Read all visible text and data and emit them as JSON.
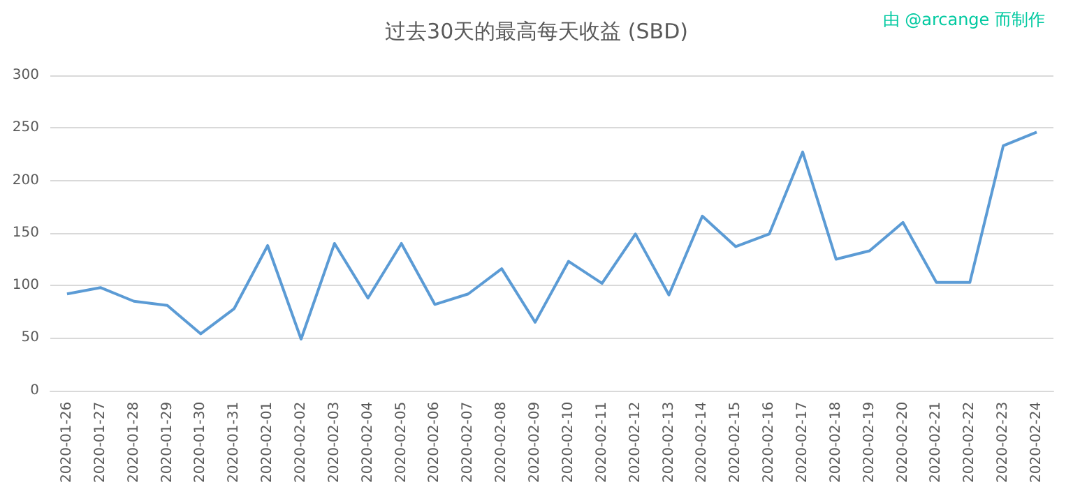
{
  "chart_data": {
    "type": "line",
    "title": "过去30天的最高每天收益 (SBD)",
    "annotations": [
      "由 @arcange 而制作"
    ],
    "categories": [
      "2020-01-26",
      "2020-01-27",
      "2020-01-28",
      "2020-01-29",
      "2020-01-30",
      "2020-01-31",
      "2020-02-01",
      "2020-02-02",
      "2020-02-03",
      "2020-02-04",
      "2020-02-05",
      "2020-02-06",
      "2020-02-07",
      "2020-02-08",
      "2020-02-09",
      "2020-02-10",
      "2020-02-11",
      "2020-02-12",
      "2020-02-13",
      "2020-02-14",
      "2020-02-15",
      "2020-02-16",
      "2020-02-17",
      "2020-02-18",
      "2020-02-19",
      "2020-02-20",
      "2020-02-21",
      "2020-02-22",
      "2020-02-23",
      "2020-02-24"
    ],
    "series": [
      {
        "color": "#5b9bd5",
        "values": [
          92,
          98,
          85,
          81,
          54,
          78,
          138,
          49,
          140,
          88,
          140,
          82,
          92,
          116,
          65,
          123,
          102,
          149,
          91,
          166,
          137,
          149,
          227,
          125,
          133,
          160,
          103,
          103,
          233,
          246
        ]
      }
    ],
    "ylim": [
      0,
      300
    ],
    "yticks": [
      0,
      50,
      100,
      150,
      200,
      250,
      300
    ],
    "grid": "y",
    "marker": "none",
    "line_style": "solid"
  }
}
